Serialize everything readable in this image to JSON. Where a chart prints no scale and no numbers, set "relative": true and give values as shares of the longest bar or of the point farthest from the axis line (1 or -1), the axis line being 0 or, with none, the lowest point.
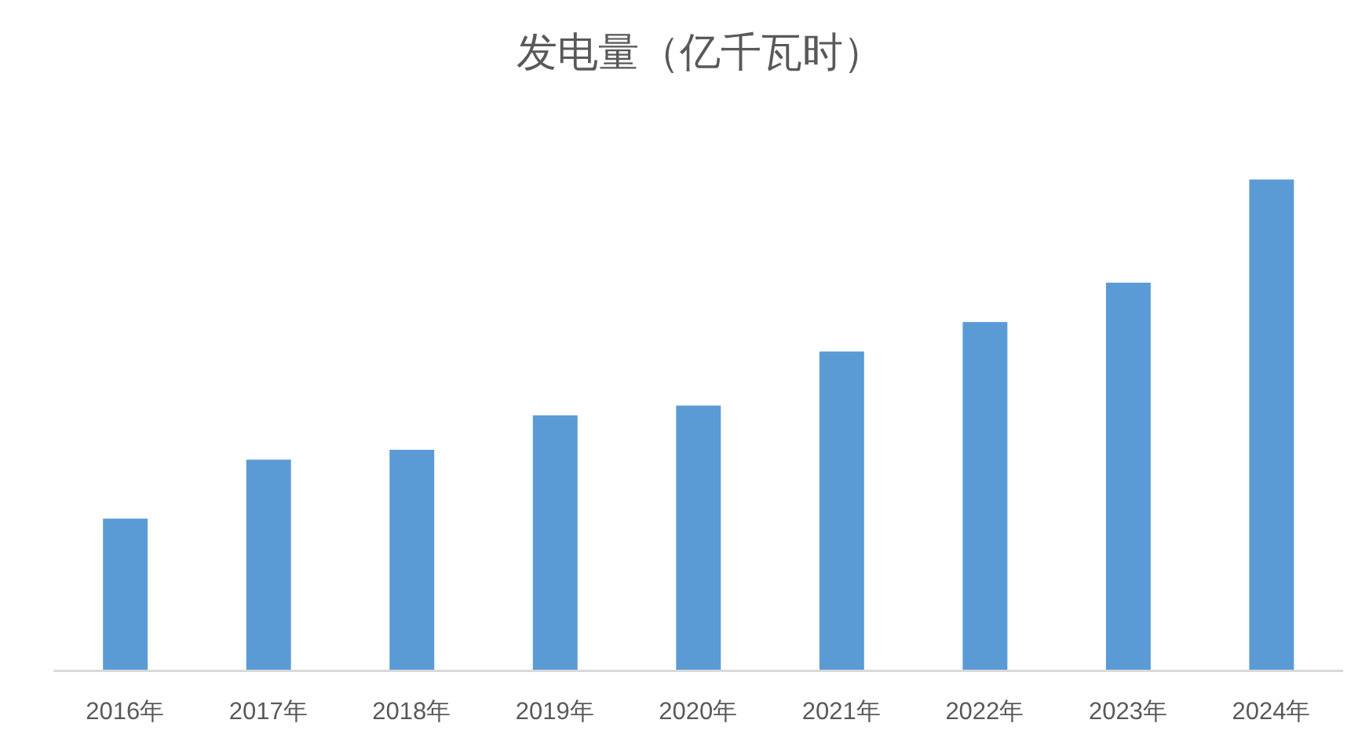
{
  "chart_data": {
    "type": "bar",
    "title": "发电量（亿千瓦时）",
    "categories": [
      "2016年",
      "2017年",
      "2018年",
      "2019年",
      "2020年",
      "2021年",
      "2022年",
      "2023年",
      "2024年"
    ],
    "values": [
      0.31,
      0.43,
      0.45,
      0.52,
      0.54,
      0.65,
      0.71,
      0.79,
      1
    ],
    "color": "#5b9bd5",
    "relative": true
  }
}
